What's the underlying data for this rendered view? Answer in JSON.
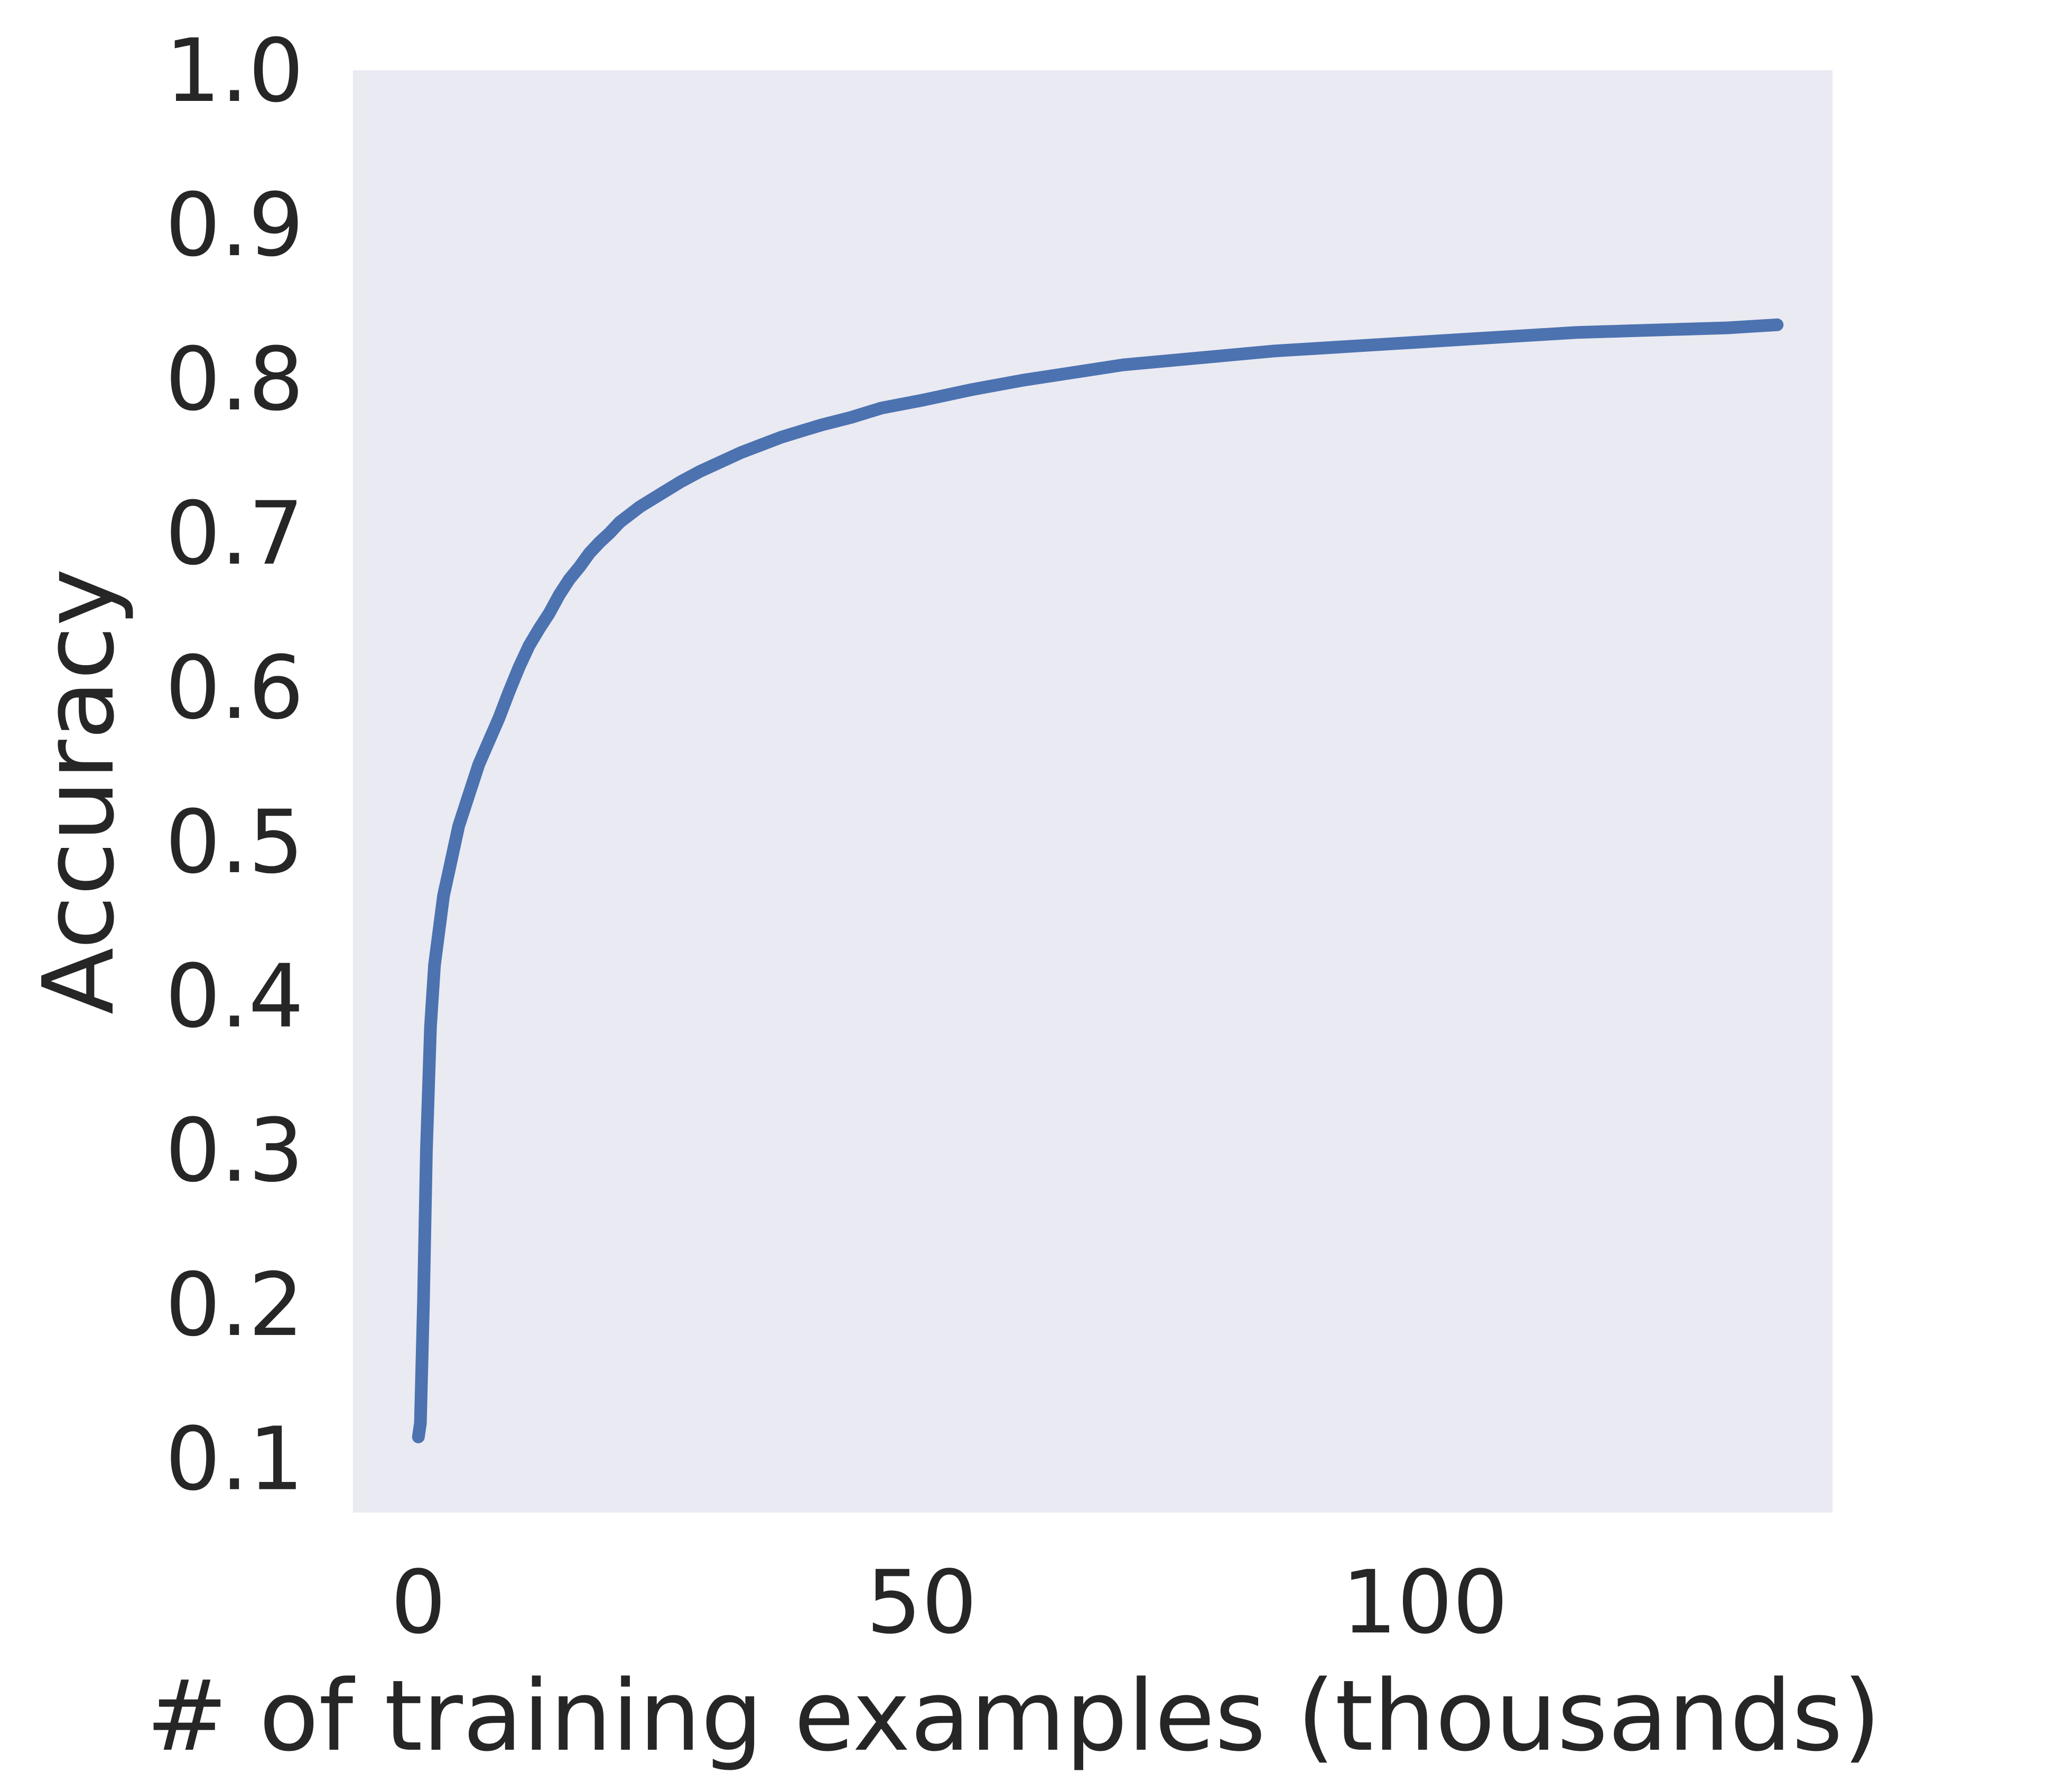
{
  "chart_data": {
    "type": "line",
    "title": "",
    "xlabel": "# of training examples (thousands)",
    "ylabel": "Accuracy",
    "xlim": [
      -6.5,
      140.5
    ],
    "ylim": [
      0.065,
      1.0
    ],
    "xticks": [
      0,
      50,
      100
    ],
    "yticks": [
      0.1,
      0.2,
      0.3,
      0.4,
      0.5,
      0.6,
      0.7,
      0.8,
      0.9,
      1.0
    ],
    "xtick_labels": [
      "0",
      "50",
      "100"
    ],
    "ytick_labels": [
      "0.1",
      "0.2",
      "0.3",
      "0.4",
      "0.5",
      "0.6",
      "0.7",
      "0.8",
      "0.9",
      "1.0"
    ],
    "grid": false,
    "background_color": "#eaeaf2",
    "series": [
      {
        "color": "#4c72b0",
        "x": [
          0,
          0.2,
          0.5,
          0.8,
          1.2,
          1.6,
          2.0,
          2.5,
          3.0,
          3.5,
          4.0,
          5.0,
          6.0,
          7.0,
          8.0,
          9.0,
          10,
          11,
          12,
          13,
          14,
          15,
          16,
          17,
          18,
          19,
          20,
          22,
          24,
          26,
          28,
          30,
          32,
          34,
          36,
          38,
          40,
          43,
          46,
          50,
          55,
          60,
          65,
          70,
          75,
          80,
          85,
          90,
          95,
          100,
          105,
          110,
          115,
          120,
          125,
          130,
          135
        ],
        "y": [
          0.114,
          0.123,
          0.2,
          0.3,
          0.38,
          0.42,
          0.44,
          0.465,
          0.48,
          0.495,
          0.51,
          0.53,
          0.55,
          0.565,
          0.58,
          0.597,
          0.613,
          0.627,
          0.638,
          0.648,
          0.66,
          0.67,
          0.678,
          0.687,
          0.694,
          0.7,
          0.707,
          0.717,
          0.725,
          0.733,
          0.74,
          0.746,
          0.752,
          0.757,
          0.762,
          0.766,
          0.77,
          0.775,
          0.781,
          0.786,
          0.793,
          0.799,
          0.804,
          0.809,
          0.812,
          0.815,
          0.818,
          0.82,
          0.822,
          0.824,
          0.826,
          0.828,
          0.83,
          0.831,
          0.832,
          0.833,
          0.835
        ]
      }
    ]
  }
}
